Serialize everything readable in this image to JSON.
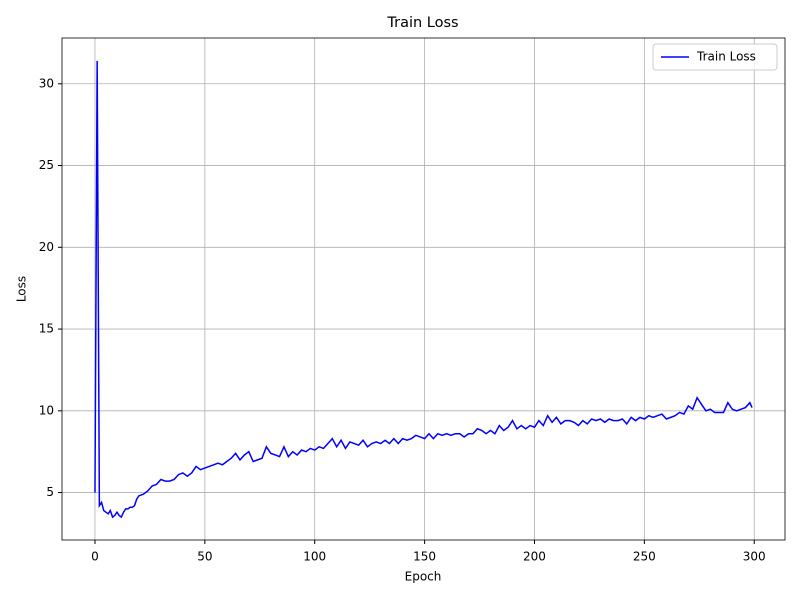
{
  "chart_data": {
    "type": "line",
    "title": "Train Loss",
    "x_label": "Epoch",
    "y_label": "Loss",
    "x": [
      0,
      1,
      2,
      3,
      4,
      5,
      6,
      7,
      8,
      9,
      10,
      11,
      12,
      13,
      14,
      15,
      16,
      17,
      18,
      19,
      20,
      22,
      24,
      26,
      28,
      30,
      32,
      34,
      36,
      38,
      40,
      42,
      44,
      46,
      48,
      50,
      52,
      54,
      56,
      58,
      60,
      62,
      64,
      66,
      68,
      70,
      72,
      74,
      76,
      78,
      80,
      82,
      84,
      86,
      88,
      90,
      92,
      94,
      96,
      98,
      100,
      102,
      104,
      106,
      108,
      110,
      112,
      114,
      116,
      118,
      120,
      122,
      124,
      126,
      128,
      130,
      132,
      134,
      136,
      138,
      140,
      142,
      144,
      146,
      148,
      150,
      152,
      154,
      156,
      158,
      160,
      162,
      164,
      166,
      168,
      170,
      172,
      174,
      176,
      178,
      180,
      182,
      184,
      186,
      188,
      190,
      192,
      194,
      196,
      198,
      200,
      202,
      204,
      206,
      208,
      210,
      212,
      214,
      216,
      218,
      220,
      222,
      224,
      226,
      228,
      230,
      232,
      234,
      236,
      238,
      240,
      242,
      244,
      246,
      248,
      250,
      252,
      254,
      256,
      258,
      260,
      262,
      264,
      266,
      268,
      270,
      272,
      274,
      276,
      278,
      280,
      282,
      284,
      286,
      288,
      290,
      292,
      294,
      296,
      298,
      299
    ],
    "series": [
      {
        "name": "Train Loss",
        "color": "#0000ff",
        "values": [
          5.0,
          31.4,
          4.2,
          4.4,
          3.9,
          3.8,
          3.7,
          3.9,
          3.5,
          3.6,
          3.8,
          3.6,
          3.5,
          3.8,
          4.0,
          4.0,
          4.1,
          4.1,
          4.2,
          4.6,
          4.8,
          4.9,
          5.1,
          5.4,
          5.5,
          5.8,
          5.7,
          5.7,
          5.8,
          6.1,
          6.2,
          6.0,
          6.2,
          6.6,
          6.4,
          6.5,
          6.6,
          6.7,
          6.8,
          6.7,
          6.9,
          7.1,
          7.4,
          7.0,
          7.3,
          7.5,
          6.9,
          7.0,
          7.1,
          7.8,
          7.4,
          7.3,
          7.2,
          7.8,
          7.2,
          7.5,
          7.3,
          7.6,
          7.5,
          7.7,
          7.6,
          7.8,
          7.7,
          8.0,
          8.3,
          7.8,
          8.2,
          7.7,
          8.1,
          8.0,
          7.9,
          8.2,
          7.8,
          8.0,
          8.1,
          8.0,
          8.2,
          8.0,
          8.3,
          8.0,
          8.3,
          8.2,
          8.3,
          8.5,
          8.4,
          8.3,
          8.6,
          8.3,
          8.6,
          8.5,
          8.6,
          8.5,
          8.6,
          8.6,
          8.4,
          8.6,
          8.6,
          8.9,
          8.8,
          8.6,
          8.8,
          8.6,
          9.1,
          8.8,
          9.0,
          9.4,
          8.9,
          9.1,
          8.9,
          9.1,
          9.0,
          9.4,
          9.1,
          9.7,
          9.3,
          9.6,
          9.2,
          9.4,
          9.4,
          9.3,
          9.1,
          9.4,
          9.2,
          9.5,
          9.4,
          9.5,
          9.3,
          9.5,
          9.4,
          9.4,
          9.5,
          9.2,
          9.6,
          9.4,
          9.6,
          9.5,
          9.7,
          9.6,
          9.7,
          9.8,
          9.5,
          9.6,
          9.7,
          9.9,
          9.8,
          10.3,
          10.1,
          10.8,
          10.4,
          10.0,
          10.1,
          9.9,
          9.9,
          9.9,
          10.5,
          10.1,
          10.0,
          10.1,
          10.2,
          10.5,
          10.2
        ]
      }
    ],
    "xlim": [
      -15,
      314
    ],
    "ylim": [
      2.1,
      32.8
    ],
    "xticks": [
      0,
      50,
      100,
      150,
      200,
      250,
      300
    ],
    "yticks": [
      5,
      10,
      15,
      20,
      25,
      30
    ],
    "grid": true,
    "legend": "upper right"
  }
}
